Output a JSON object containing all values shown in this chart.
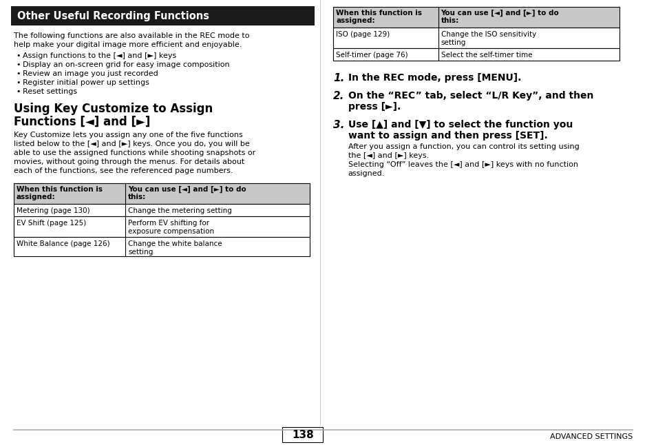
{
  "bg_color": "#ffffff",
  "page_bg": "#ffffff",
  "header_bg": "#1a1a1a",
  "header_text": "Other Useful Recording Functions",
  "header_text_color": "#ffffff",
  "table_header_bg": "#c8c8c8",
  "table_border_color": "#000000",
  "divider_color": "#999999",
  "footer_text_color": "#000000",
  "page_number": "138",
  "footer_right": "ADVANCED SETTINGS",
  "left_content": {
    "intro_lines": [
      "The following functions are also available in the REC mode to",
      "help make your digital image more efficient and enjoyable."
    ],
    "bullets": [
      "Assign functions to the [◄] and [►] keys",
      "Display an on-screen grid for easy image composition",
      "Review an image you just recorded",
      "Register initial power up settings",
      "Reset settings"
    ],
    "section_title": [
      "Using Key Customize to Assign",
      "Functions [◄] and [►]"
    ],
    "section_body": [
      "Key Customize lets you assign any one of the five functions",
      "listed below to the [◄] and [►] keys. Once you do, you will be",
      "able to use the assigned functions while shooting snapshots or",
      "movies, without going through the menus. For details about",
      "each of the functions, see the referenced page numbers."
    ],
    "table_headers": [
      "When this function is\nassigned:",
      "You can use [◄] and [►] to do\nthis:"
    ],
    "table_rows": [
      [
        "Metering (page 130)",
        "Change the metering setting"
      ],
      [
        "EV Shift (page 125)",
        "Perform EV shifting for\nexposure compensation"
      ],
      [
        "White Balance (page 126)",
        "Change the white balance\nsetting"
      ]
    ]
  },
  "right_content": {
    "table_headers": [
      "When this function is\nassigned:",
      "You can use [◄] and [►] to do\nthis:"
    ],
    "table_rows": [
      [
        "ISO (page 129)",
        "Change the ISO sensitivity\nsetting"
      ],
      [
        "Self-timer (page 76)",
        "Select the self-timer time"
      ]
    ],
    "steps": [
      {
        "num": "1.",
        "lines": [
          "In the REC mode, press [MENU]."
        ],
        "body": []
      },
      {
        "num": "2.",
        "lines": [
          "On the “REC” tab, select “L/R Key”, and then",
          "press [►]."
        ],
        "body": []
      },
      {
        "num": "3.",
        "lines": [
          "Use [▲] and [▼] to select the function you",
          "want to assign and then press [SET]."
        ],
        "body": [
          "After you assign a function, you can control its setting using",
          "the [◄] and [►] keys.",
          "Selecting “Off” leaves the [◄] and [►] keys with no function",
          "assigned."
        ]
      }
    ]
  }
}
